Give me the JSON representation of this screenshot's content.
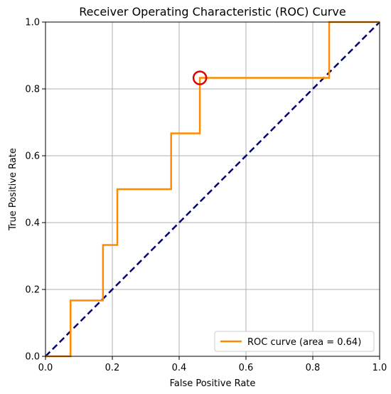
{
  "chart_data": {
    "type": "line",
    "title": "Receiver Operating Characteristic (ROC) Curve",
    "xlabel": "False Positive Rate",
    "ylabel": "True Positive Rate",
    "xlim": [
      0.0,
      1.0
    ],
    "ylim": [
      0.0,
      1.0
    ],
    "x_ticks": [
      "0.0",
      "0.2",
      "0.4",
      "0.6",
      "0.8",
      "1.0"
    ],
    "y_ticks": [
      "0.0",
      "0.2",
      "0.4",
      "0.6",
      "0.8",
      "1.0"
    ],
    "grid": true,
    "legend_position": "lower-right",
    "series": [
      {
        "name": "ROC curve (area = 0.64)",
        "color": "#ff8c00",
        "points": [
          [
            0.0,
            0.0
          ],
          [
            0.075,
            0.0
          ],
          [
            0.075,
            0.167
          ],
          [
            0.172,
            0.167
          ],
          [
            0.172,
            0.333
          ],
          [
            0.215,
            0.333
          ],
          [
            0.215,
            0.5
          ],
          [
            0.376,
            0.5
          ],
          [
            0.376,
            0.667
          ],
          [
            0.462,
            0.667
          ],
          [
            0.462,
            0.833
          ],
          [
            0.849,
            0.833
          ],
          [
            0.849,
            1.0
          ],
          [
            1.0,
            1.0
          ]
        ]
      },
      {
        "color": "#000080",
        "style": "dashed",
        "points": [
          [
            0.0,
            0.0
          ],
          [
            1.0,
            1.0
          ]
        ]
      }
    ],
    "highlight_point": {
      "x": 0.462,
      "y": 0.833,
      "color": "#e00000"
    }
  }
}
